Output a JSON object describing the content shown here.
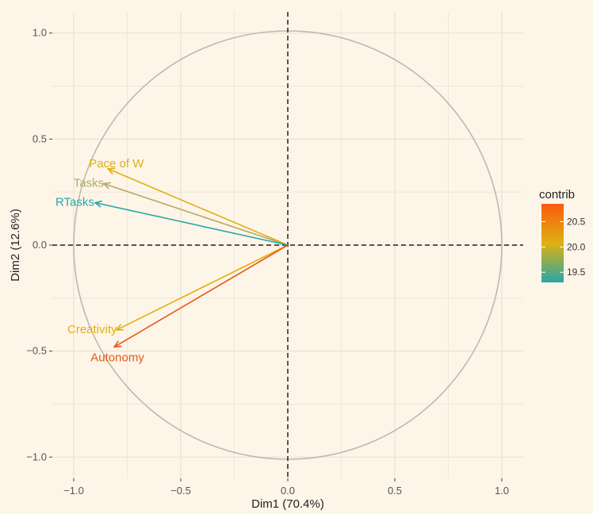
{
  "chart_data": {
    "type": "scatter",
    "subtype": "pca-variable-correlation-circle",
    "xlabel": "Dim1 (70.4%)",
    "ylabel": "Dim2 (12.6%)",
    "xlim": [
      -1.1,
      1.1
    ],
    "ylim": [
      -1.1,
      1.1
    ],
    "xticks": [
      -1.0,
      -0.5,
      0.0,
      0.5,
      1.0
    ],
    "yticks": [
      -1.0,
      -0.5,
      0.0,
      0.5,
      1.0
    ],
    "xtick_labels": [
      "−1.0",
      "−0.5",
      "0.0",
      "0.5",
      "1.0"
    ],
    "ytick_labels": [
      "−1.0",
      "−0.5",
      "0.0",
      "0.5",
      "1.0"
    ],
    "grid": true,
    "unit_circle": true,
    "variables": [
      {
        "name": "Pace of W",
        "x": -0.84,
        "y": 0.36,
        "contrib": 20.1,
        "color": "#e0b010"
      },
      {
        "name": "Tasks",
        "x": -0.86,
        "y": 0.29,
        "contrib": 19.8,
        "color": "#b5a868"
      },
      {
        "name": "RTasks",
        "x": -0.9,
        "y": 0.2,
        "contrib": 19.4,
        "color": "#26a7a7"
      },
      {
        "name": "Creativity",
        "x": -0.8,
        "y": -0.4,
        "contrib": 20.1,
        "color": "#e0b010"
      },
      {
        "name": "Autonomy",
        "x": -0.81,
        "y": -0.48,
        "contrib": 20.7,
        "color": "#e8581c"
      }
    ],
    "legend": {
      "title": "contrib",
      "placement": "right",
      "min": 19.3,
      "max": 20.85,
      "ticks": [
        19.5,
        20.0,
        20.5
      ],
      "tick_labels": [
        "19.5",
        "20.0",
        "20.5"
      ],
      "gradient_colors": [
        "#26a7a7",
        "#e0b010",
        "#f95a10"
      ]
    },
    "colors": {
      "background": "#fdf5e8",
      "grid": "#ece4d6",
      "circle": "#bdb8b0",
      "zero_lines": "#222222"
    }
  }
}
